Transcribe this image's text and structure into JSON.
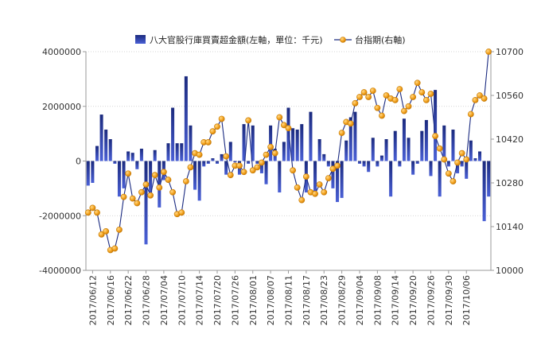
{
  "chart_data": {
    "type": "bar+line",
    "legend": {
      "position": "top",
      "items": [
        {
          "label": "八大官股行庫買賣超金額(左軸，單位：千元)",
          "type": "bar",
          "color": "#2a3a9a"
        },
        {
          "label": "台指期(右軸)",
          "type": "line-marker",
          "color": "#f5a623",
          "line_color": "#1a2a80"
        }
      ]
    },
    "left_axis": {
      "ylim": [
        -4000000,
        4000000
      ],
      "ticks": [
        -4000000,
        -2000000,
        0,
        2000000,
        4000000
      ],
      "tick_labels": [
        "-4000000",
        "-2000000",
        "0",
        "2000000",
        "4000000"
      ]
    },
    "right_axis": {
      "ylim": [
        10000,
        10700
      ],
      "ticks": [
        10000,
        10140,
        10280,
        10420,
        10560,
        10700
      ],
      "tick_labels": [
        "10000",
        "10140",
        "10280",
        "10420",
        "10560",
        "10700"
      ]
    },
    "x_labels": [
      "2017/06/12",
      "2017/06/16",
      "2017/06/22",
      "2017/06/28",
      "2017/07/04",
      "2017/07/10",
      "2017/07/14",
      "2017/07/20",
      "2017/07/26",
      "2017/08/01",
      "2017/08/07",
      "2017/08/11",
      "2017/08/17",
      "2017/08/23",
      "2017/08/29",
      "2017/09/04",
      "2017/09/08",
      "2017/09/14",
      "2017/09/20",
      "2017/09/26",
      "2017/09/30",
      "2017/10/06"
    ],
    "series": [
      {
        "name": "八大官股行庫買賣超金額",
        "axis": "left",
        "type": "bar",
        "values": [
          -900000,
          -800000,
          550000,
          1700000,
          1150000,
          800000,
          -100000,
          -1300000,
          -1000000,
          350000,
          300000,
          -300000,
          450000,
          -3050000,
          -1250000,
          400000,
          -1700000,
          -700000,
          650000,
          1950000,
          650000,
          650000,
          3100000,
          1300000,
          -1050000,
          -1450000,
          -200000,
          -100000,
          100000,
          -100000,
          250000,
          -500000,
          700000,
          -50000,
          -500000,
          1350000,
          -100000,
          1300000,
          -100000,
          -450000,
          -850000,
          1300000,
          450000,
          -1150000,
          700000,
          1950000,
          1200000,
          1150000,
          1350000,
          -1150000,
          1800000,
          -1250000,
          800000,
          250000,
          -200000,
          -1000000,
          -1500000,
          -1350000,
          750000,
          1600000,
          1800000,
          -100000,
          -200000,
          -400000,
          850000,
          -200000,
          200000,
          800000,
          -1300000,
          1100000,
          -200000,
          1550000,
          850000,
          -500000,
          -100000,
          1100000,
          1500000,
          -550000,
          2600000,
          -1300000,
          1300000,
          -200000,
          1150000,
          -450000,
          -200000,
          -650000,
          750000,
          100000,
          350000,
          -2200000,
          -1300000
        ]
      },
      {
        "name": "台指期",
        "axis": "right",
        "type": "line",
        "values": [
          10185,
          10200,
          10185,
          10115,
          10125,
          10065,
          10070,
          10130,
          10235,
          10310,
          10230,
          10215,
          10250,
          10275,
          10240,
          10305,
          10265,
          10315,
          10290,
          10250,
          10180,
          10185,
          10285,
          10330,
          10375,
          10370,
          10410,
          10410,
          10445,
          10460,
          10485,
          10365,
          10305,
          10335,
          10335,
          10315,
          10480,
          10320,
          10330,
          10345,
          10370,
          10395,
          10375,
          10490,
          10465,
          10455,
          10320,
          10265,
          10225,
          10300,
          10250,
          10245,
          10275,
          10250,
          10295,
          10325,
          10335,
          10440,
          10475,
          10470,
          10535,
          10555,
          10570,
          10555,
          10575,
          10520,
          10495,
          10560,
          10550,
          10545,
          10580,
          10510,
          10525,
          10555,
          10600,
          10570,
          10545,
          10565,
          10430,
          10390,
          10355,
          10310,
          10285,
          10345,
          10375,
          10355,
          10500,
          10545,
          10560,
          10550,
          10700
        ]
      }
    ]
  }
}
